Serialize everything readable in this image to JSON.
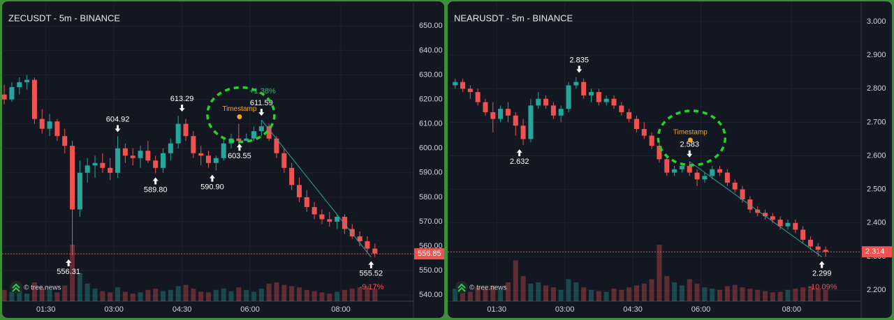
{
  "chart_data": [
    {
      "type": "candlestick",
      "title": "ZECUSDT - 5m - BINANCE",
      "watermark": "© tree.news",
      "xlim": [
        34,
        576
      ],
      "ylim": [
        537.5,
        659.5
      ],
      "xticks": [
        {
          "value": 90,
          "label": "01:30"
        },
        {
          "value": 180,
          "label": "03:00"
        },
        {
          "value": 270,
          "label": "04:30"
        },
        {
          "value": 360,
          "label": "06:00"
        },
        {
          "value": 480,
          "label": "08:00"
        }
      ],
      "yticks": [
        {
          "value": 540,
          "label": "540.00"
        },
        {
          "value": 550,
          "label": "550.00"
        },
        {
          "value": 560,
          "label": "560.00"
        },
        {
          "value": 570,
          "label": "570.00"
        },
        {
          "value": 580,
          "label": "580.00"
        },
        {
          "value": 590,
          "label": "590.00"
        },
        {
          "value": 600,
          "label": "600.00"
        },
        {
          "value": 610,
          "label": "610.00"
        },
        {
          "value": 620,
          "label": "620.00"
        },
        {
          "value": 630,
          "label": "630.00"
        },
        {
          "value": 640,
          "label": "640.00"
        },
        {
          "value": 650,
          "label": "650.00"
        }
      ],
      "x": [
        35,
        45,
        55,
        65,
        75,
        85,
        95,
        105,
        115,
        125,
        135,
        145,
        155,
        165,
        175,
        185,
        195,
        205,
        215,
        225,
        235,
        245,
        255,
        265,
        275,
        285,
        295,
        305,
        315,
        325,
        335,
        345,
        355,
        365,
        375,
        385,
        395,
        405,
        415,
        425,
        435,
        445,
        455,
        465,
        475,
        485,
        495,
        505,
        515,
        525
      ],
      "open": [
        622,
        620,
        625,
        627,
        628,
        612,
        608,
        611,
        605,
        601,
        575,
        590,
        593,
        594,
        592,
        590,
        600,
        597,
        596,
        599,
        595,
        592,
        598,
        602,
        610,
        605,
        598,
        597,
        594,
        596,
        602,
        604,
        603,
        604,
        607,
        609,
        604,
        598,
        592,
        585,
        580,
        576,
        573,
        571,
        570,
        572,
        567,
        564,
        562,
        559
      ],
      "high": [
        626,
        627,
        629,
        630,
        629,
        616,
        614,
        612,
        608,
        603,
        595,
        596,
        597,
        598,
        596,
        604.92,
        602,
        600,
        601,
        603,
        597,
        600,
        604,
        613.29,
        612,
        607,
        601,
        599,
        597,
        604,
        606,
        610,
        606,
        609,
        611.59,
        610,
        605,
        600,
        594,
        588,
        583,
        578,
        575,
        574,
        573,
        573,
        569,
        566,
        564,
        561
      ],
      "low": [
        618,
        619,
        622,
        624,
        610,
        606,
        605,
        603,
        598,
        556.31,
        572,
        586,
        588,
        590,
        587,
        588,
        594,
        593,
        592,
        594,
        589.8,
        590,
        595,
        600,
        603,
        596,
        593,
        592,
        590.9,
        595,
        600,
        601,
        603.55,
        603,
        605,
        603,
        596,
        590,
        583,
        578,
        574,
        571,
        569,
        568,
        567,
        565,
        563,
        560,
        557,
        555.52
      ],
      "close": [
        620,
        625,
        627,
        628,
        612,
        608,
        611,
        605,
        601,
        575,
        590,
        593,
        594,
        592,
        590,
        600,
        597,
        596,
        599,
        595,
        592,
        598,
        602,
        610,
        605,
        598,
        597,
        594,
        596,
        602,
        604,
        603,
        604,
        607,
        609,
        604,
        598,
        592,
        585,
        580,
        576,
        573,
        571,
        570,
        572,
        567,
        564,
        562,
        559,
        557
      ],
      "volume": [
        18,
        15,
        20,
        12,
        30,
        22,
        18,
        14,
        25,
        90,
        45,
        28,
        20,
        16,
        14,
        22,
        15,
        12,
        14,
        18,
        20,
        16,
        18,
        24,
        26,
        20,
        15,
        14,
        18,
        20,
        16,
        22,
        18,
        15,
        20,
        28,
        30,
        26,
        24,
        22,
        18,
        16,
        14,
        12,
        15,
        18,
        20,
        22,
        24,
        20
      ],
      "markers": [
        {
          "x": 120,
          "value": 556.31,
          "label": "556.31",
          "dir": "up"
        },
        {
          "x": 185,
          "value": 604.92,
          "label": "604.92",
          "dir": "down"
        },
        {
          "x": 235,
          "value": 589.8,
          "label": "589.80",
          "dir": "up"
        },
        {
          "x": 270,
          "value": 613.29,
          "label": "613.29",
          "dir": "down"
        },
        {
          "x": 310,
          "value": 590.9,
          "label": "590.90",
          "dir": "up"
        },
        {
          "x": 346,
          "value": 603.55,
          "label": "603.55",
          "dir": "up"
        },
        {
          "x": 375,
          "value": 611.59,
          "label": "611.59",
          "dir": "down"
        },
        {
          "x": 520,
          "value": 555.52,
          "label": "555.52",
          "dir": "up"
        }
      ],
      "timestamp": {
        "label": "Timestamp",
        "x": 346,
        "value": 612.9
      },
      "last_price": {
        "value": 556.85,
        "label": "556.85"
      },
      "changes": [
        "+1.38%",
        "-9.17%"
      ]
    },
    {
      "type": "candlestick",
      "title": "NEARUSDT - 5m - BINANCE",
      "watermark": "© tree.news",
      "xlim": [
        27,
        572
      ],
      "ylim": [
        2.167,
        3.056
      ],
      "xticks": [
        {
          "value": 90,
          "label": "01:30"
        },
        {
          "value": 180,
          "label": "03:00"
        },
        {
          "value": 270,
          "label": "04:30"
        },
        {
          "value": 360,
          "label": "06:00"
        },
        {
          "value": 480,
          "label": "08:00"
        }
      ],
      "yticks": [
        {
          "value": 2.2,
          "label": "2.200"
        },
        {
          "value": 2.3,
          "label": "2.300"
        },
        {
          "value": 2.4,
          "label": "2.400"
        },
        {
          "value": 2.5,
          "label": "2.500"
        },
        {
          "value": 2.6,
          "label": "2.600"
        },
        {
          "value": 2.7,
          "label": "2.700"
        },
        {
          "value": 2.8,
          "label": "2.800"
        },
        {
          "value": 2.9,
          "label": "2.900"
        },
        {
          "value": 3,
          "label": "3.000"
        }
      ],
      "x": [
        35,
        45,
        55,
        65,
        75,
        85,
        95,
        105,
        115,
        125,
        135,
        145,
        155,
        165,
        175,
        185,
        195,
        205,
        215,
        225,
        235,
        245,
        255,
        265,
        275,
        285,
        295,
        305,
        315,
        325,
        335,
        345,
        355,
        365,
        375,
        385,
        395,
        405,
        415,
        425,
        435,
        445,
        455,
        465,
        475,
        485,
        495,
        505,
        515,
        525
      ],
      "open": [
        2.81,
        2.82,
        2.8,
        2.79,
        2.76,
        2.73,
        2.71,
        2.74,
        2.72,
        2.69,
        2.65,
        2.75,
        2.77,
        2.75,
        2.72,
        2.74,
        2.81,
        2.82,
        2.78,
        2.79,
        2.76,
        2.77,
        2.75,
        2.73,
        2.71,
        2.68,
        2.66,
        2.63,
        2.59,
        2.55,
        2.56,
        2.57,
        2.55,
        2.53,
        2.54,
        2.56,
        2.55,
        2.52,
        2.5,
        2.47,
        2.44,
        2.43,
        2.42,
        2.41,
        2.39,
        2.4,
        2.38,
        2.35,
        2.33,
        2.32
      ],
      "high": [
        2.83,
        2.83,
        2.81,
        2.8,
        2.77,
        2.76,
        2.75,
        2.76,
        2.73,
        2.71,
        2.77,
        2.79,
        2.78,
        2.76,
        2.75,
        2.82,
        2.835,
        2.83,
        2.8,
        2.8,
        2.78,
        2.78,
        2.76,
        2.74,
        2.72,
        2.7,
        2.67,
        2.64,
        2.6,
        2.57,
        2.58,
        2.583,
        2.56,
        2.55,
        2.57,
        2.57,
        2.56,
        2.53,
        2.51,
        2.48,
        2.45,
        2.44,
        2.43,
        2.42,
        2.41,
        2.41,
        2.39,
        2.36,
        2.34,
        2.33
      ],
      "low": [
        2.8,
        2.79,
        2.77,
        2.75,
        2.72,
        2.67,
        2.7,
        2.7,
        2.66,
        2.632,
        2.64,
        2.74,
        2.74,
        2.71,
        2.7,
        2.73,
        2.8,
        2.77,
        2.76,
        2.75,
        2.75,
        2.74,
        2.72,
        2.7,
        2.67,
        2.65,
        2.62,
        2.58,
        2.54,
        2.54,
        2.55,
        2.54,
        2.51,
        2.52,
        2.53,
        2.54,
        2.51,
        2.49,
        2.46,
        2.43,
        2.42,
        2.41,
        2.4,
        2.38,
        2.38,
        2.37,
        2.34,
        2.32,
        2.3,
        2.299
      ],
      "close": [
        2.82,
        2.8,
        2.79,
        2.76,
        2.73,
        2.71,
        2.74,
        2.72,
        2.69,
        2.65,
        2.75,
        2.77,
        2.75,
        2.72,
        2.74,
        2.81,
        2.82,
        2.78,
        2.79,
        2.76,
        2.77,
        2.75,
        2.73,
        2.71,
        2.68,
        2.66,
        2.63,
        2.59,
        2.55,
        2.56,
        2.57,
        2.55,
        2.53,
        2.54,
        2.56,
        2.55,
        2.52,
        2.5,
        2.47,
        2.44,
        2.43,
        2.42,
        2.41,
        2.39,
        2.4,
        2.38,
        2.35,
        2.33,
        2.32,
        2.314
      ],
      "volume": [
        20,
        18,
        15,
        22,
        20,
        25,
        18,
        30,
        65,
        40,
        28,
        30,
        25,
        22,
        18,
        35,
        30,
        22,
        18,
        16,
        15,
        20,
        18,
        22,
        25,
        28,
        35,
        90,
        40,
        30,
        25,
        35,
        28,
        22,
        20,
        18,
        24,
        26,
        22,
        20,
        18,
        16,
        14,
        15,
        18,
        20,
        22,
        24,
        20,
        18
      ],
      "markers": [
        {
          "x": 120,
          "value": 2.632,
          "label": "2.632",
          "dir": "up"
        },
        {
          "x": 199,
          "value": 2.835,
          "label": "2.835",
          "dir": "down"
        },
        {
          "x": 345,
          "value": 2.583,
          "label": "2.583",
          "dir": "down"
        },
        {
          "x": 520,
          "value": 2.299,
          "label": "2.299",
          "dir": "up"
        }
      ],
      "timestamp": {
        "label": "Timestamp",
        "x": 346,
        "value": 2.647
      },
      "last_price": {
        "value": 2.314,
        "label": "2.314"
      },
      "changes": [
        "-10.09%"
      ]
    }
  ]
}
